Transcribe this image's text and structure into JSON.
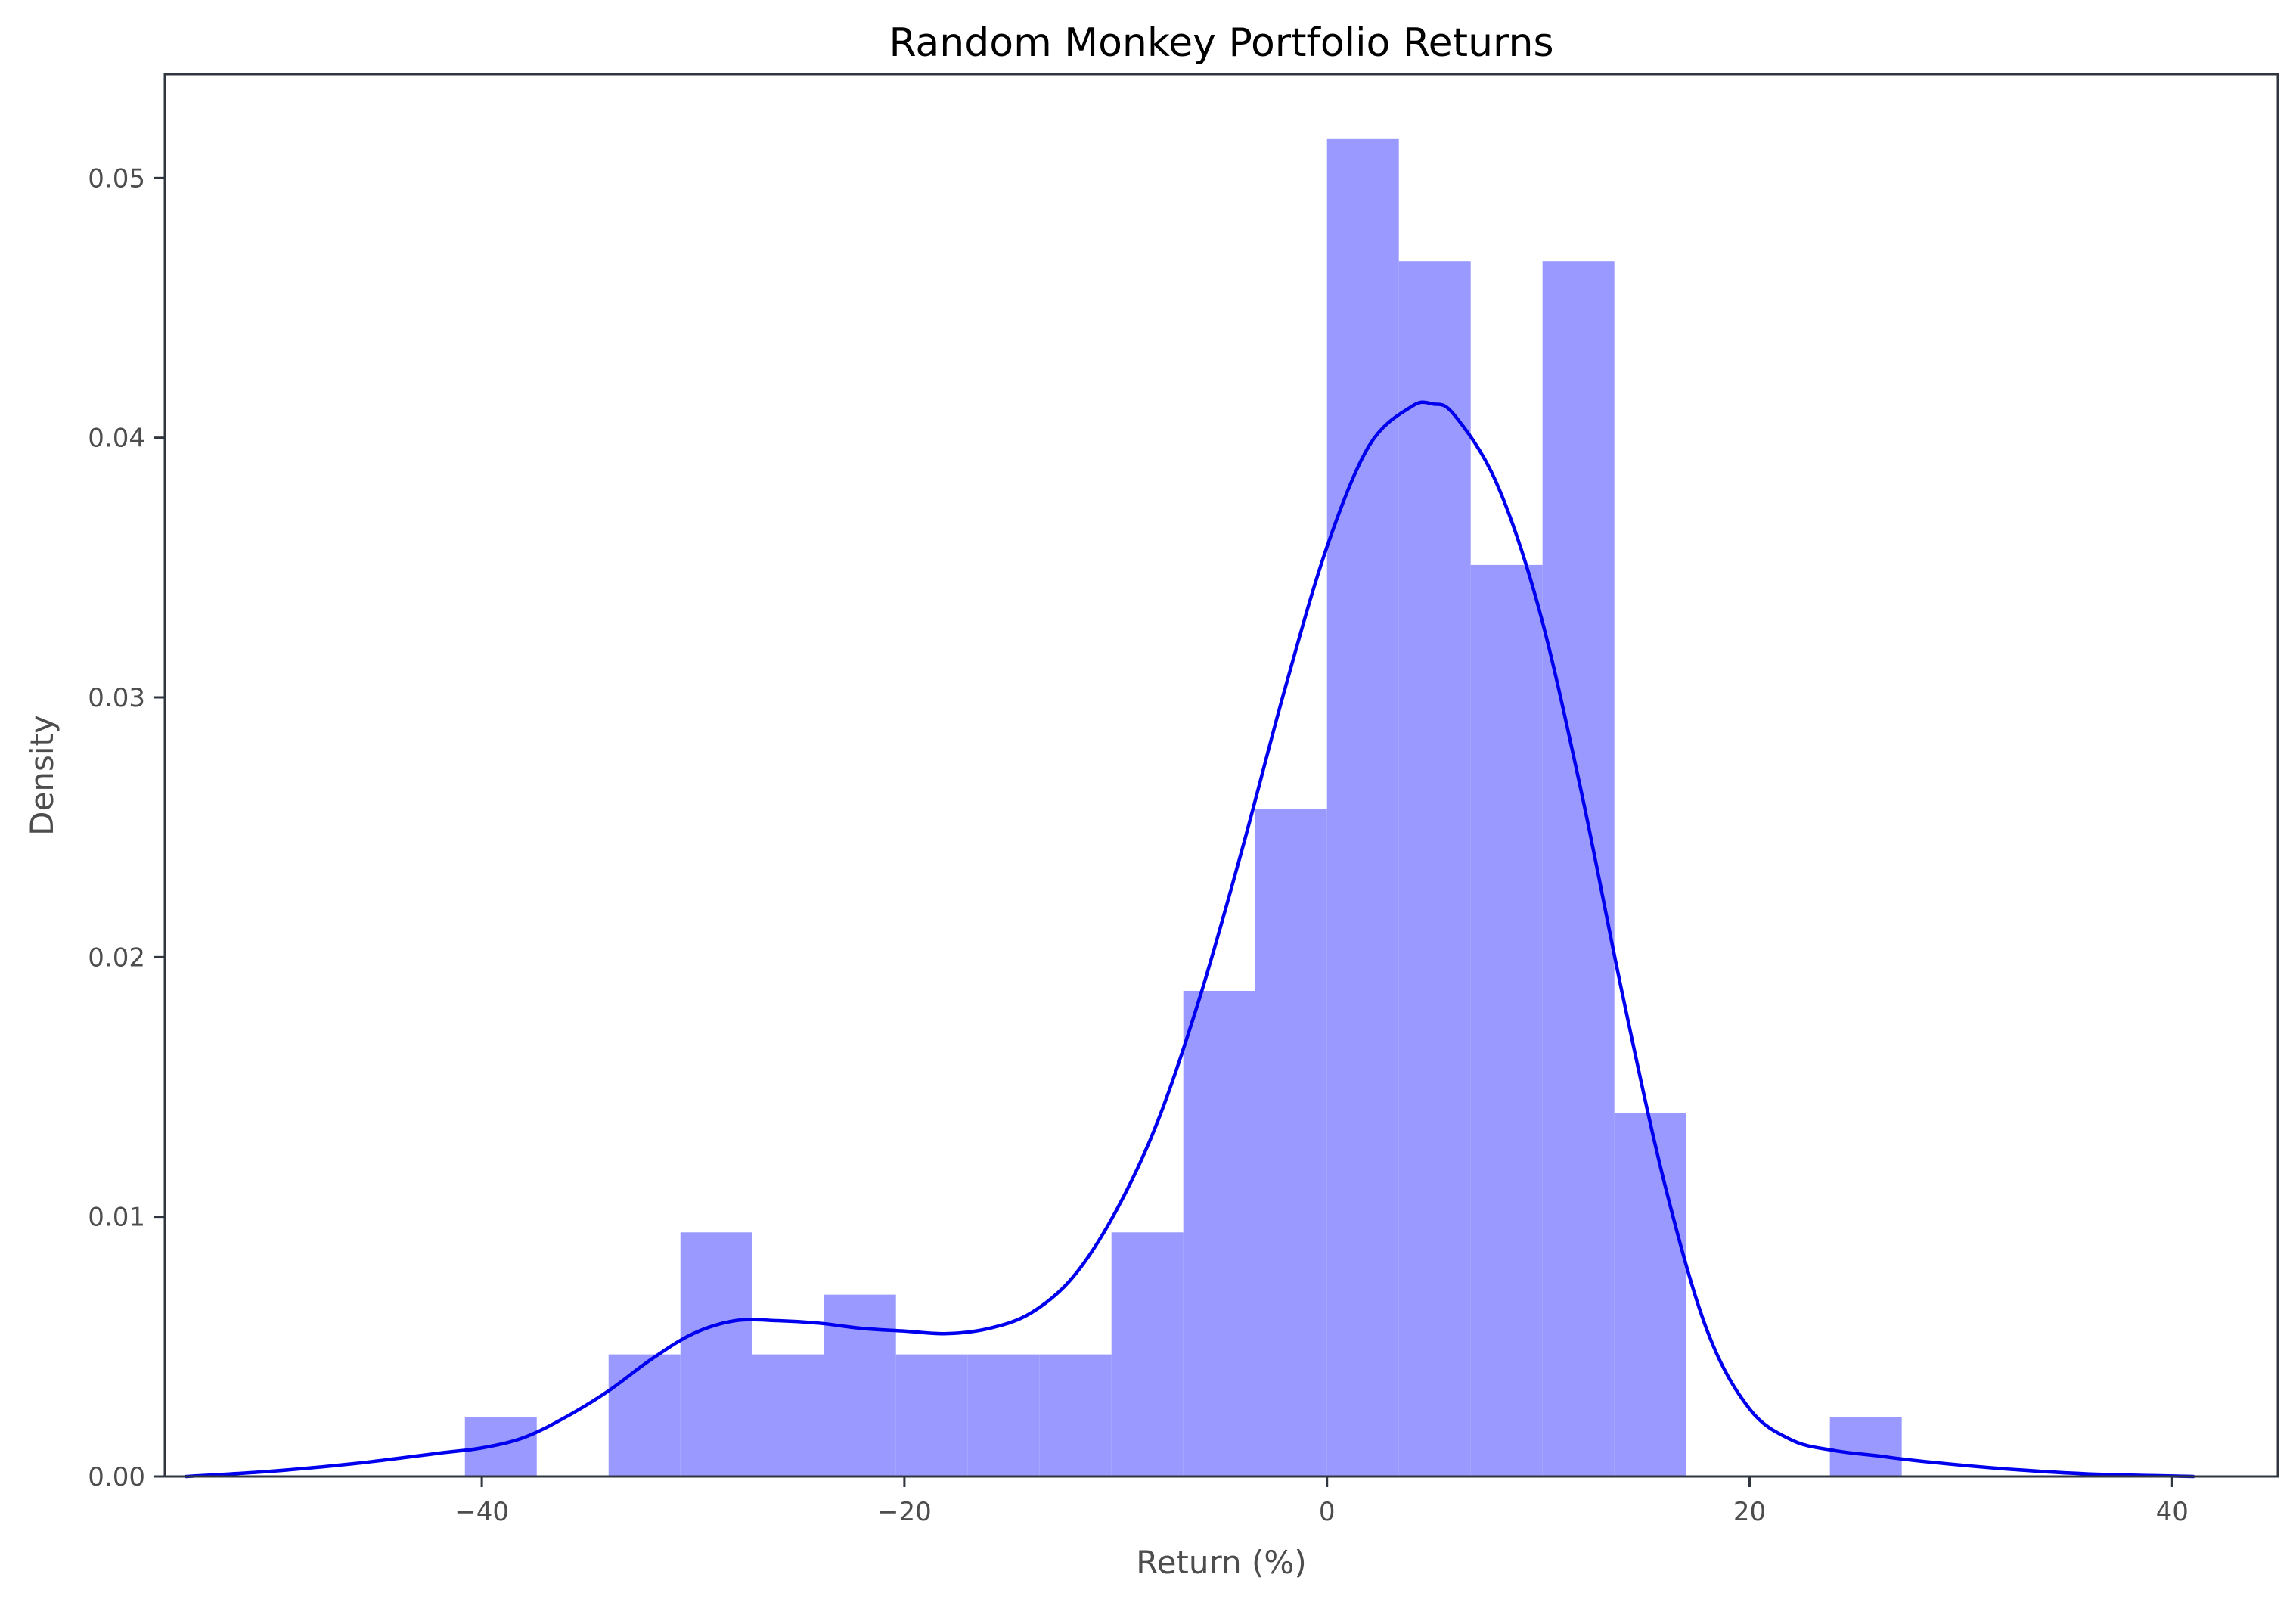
{
  "chart_data": {
    "type": "histogram",
    "title": "Random Monkey Portfolio Returns",
    "xlabel": "Return (%)",
    "ylabel": "Density",
    "xlim": [
      -55,
      45
    ],
    "ylim": [
      0,
      0.054
    ],
    "xticks": [
      {
        "value": -40,
        "label": "−40"
      },
      {
        "value": -20,
        "label": "−20"
      },
      {
        "value": 0,
        "label": "0"
      },
      {
        "value": 20,
        "label": "20"
      },
      {
        "value": 40,
        "label": "40"
      }
    ],
    "yticks": [
      {
        "value": 0.0,
        "label": "0.00"
      },
      {
        "value": 0.01,
        "label": "0.01"
      },
      {
        "value": 0.02,
        "label": "0.02"
      },
      {
        "value": 0.03,
        "label": "0.03"
      },
      {
        "value": 0.04,
        "label": "0.04"
      },
      {
        "value": 0.05,
        "label": "0.05"
      }
    ],
    "bins": [
      {
        "x0": -40.8,
        "x1": -37.4,
        "density": 0.0023
      },
      {
        "x0": -37.4,
        "x1": -34.0,
        "density": 0.0
      },
      {
        "x0": -34.0,
        "x1": -30.6,
        "density": 0.0047
      },
      {
        "x0": -30.6,
        "x1": -27.2,
        "density": 0.0094
      },
      {
        "x0": -27.2,
        "x1": -23.8,
        "density": 0.0047
      },
      {
        "x0": -23.8,
        "x1": -20.4,
        "density": 0.007
      },
      {
        "x0": -20.4,
        "x1": -17.0,
        "density": 0.0047
      },
      {
        "x0": -17.0,
        "x1": -13.6,
        "density": 0.0047
      },
      {
        "x0": -13.6,
        "x1": -10.2,
        "density": 0.0047
      },
      {
        "x0": -10.2,
        "x1": -6.8,
        "density": 0.0094
      },
      {
        "x0": -6.8,
        "x1": -3.4,
        "density": 0.0187
      },
      {
        "x0": -3.4,
        "x1": 0.0,
        "density": 0.0257
      },
      {
        "x0": 0.0,
        "x1": 3.4,
        "density": 0.0515
      },
      {
        "x0": 3.4,
        "x1": 6.8,
        "density": 0.0468
      },
      {
        "x0": 6.8,
        "x1": 10.2,
        "density": 0.0351
      },
      {
        "x0": 10.2,
        "x1": 13.6,
        "density": 0.0468
      },
      {
        "x0": 13.6,
        "x1": 17.0,
        "density": 0.014
      },
      {
        "x0": 17.0,
        "x1": 20.4,
        "density": 0.0
      },
      {
        "x0": 20.4,
        "x1": 23.8,
        "density": 0.0
      },
      {
        "x0": 23.8,
        "x1": 27.2,
        "density": 0.0023
      }
    ],
    "kde": {
      "x": [
        -54,
        -50,
        -46,
        -42,
        -40,
        -38,
        -36,
        -34,
        -32,
        -30,
        -28,
        -26,
        -24,
        -22,
        -20,
        -18,
        -16,
        -14,
        -12,
        -10,
        -8,
        -6,
        -4,
        -2,
        0,
        2,
        4,
        5,
        6,
        8,
        10,
        12,
        14,
        16,
        18,
        20,
        22,
        24,
        26,
        28,
        32,
        36,
        41
      ],
      "y": [
        0.0,
        0.0002,
        0.0005,
        0.0009,
        0.0011,
        0.0015,
        0.0023,
        0.0033,
        0.0045,
        0.0055,
        0.006,
        0.006,
        0.0059,
        0.0057,
        0.0056,
        0.0055,
        0.0057,
        0.0063,
        0.0077,
        0.0102,
        0.0137,
        0.0185,
        0.0242,
        0.0303,
        0.0358,
        0.0397,
        0.0412,
        0.0413,
        0.0409,
        0.0383,
        0.0335,
        0.0265,
        0.0185,
        0.0112,
        0.0056,
        0.0026,
        0.0014,
        0.001,
        0.0008,
        0.0006,
        0.0003,
        0.0001,
        0.0
      ]
    },
    "colors": {
      "bars": "#9999ff",
      "kde": "#0000ee",
      "axes": "#2f3640",
      "tick_text": "#4d4d4d",
      "title": "#000000"
    },
    "grid": false
  }
}
